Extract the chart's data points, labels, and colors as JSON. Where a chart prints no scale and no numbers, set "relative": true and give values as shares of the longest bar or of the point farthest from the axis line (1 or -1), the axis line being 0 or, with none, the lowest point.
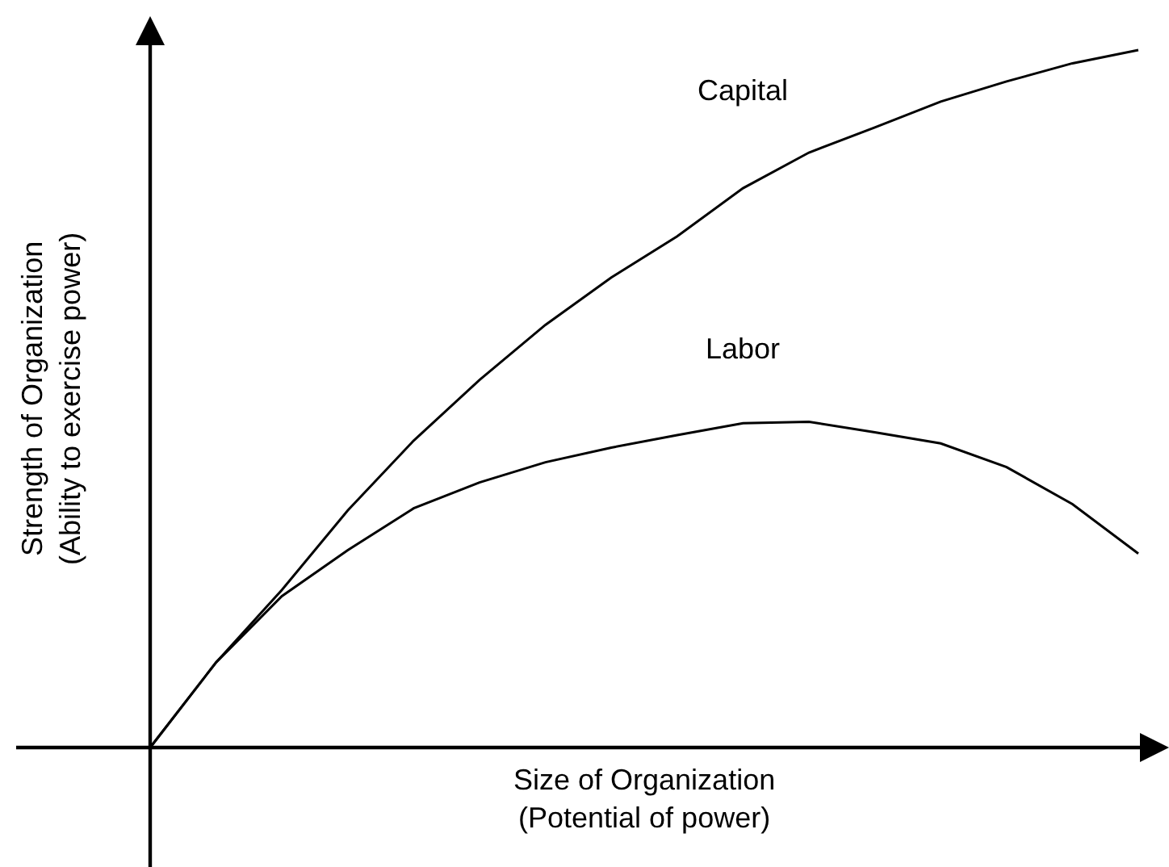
{
  "chart_data": {
    "type": "line",
    "relative": true,
    "xlabel": "Size of Organization\n(Potential of power)",
    "ylabel": "Strength of Organization\n(Ability to exercise power)",
    "categories": [
      null,
      null,
      null,
      null,
      null,
      null,
      null,
      null,
      null,
      null,
      null,
      null,
      null,
      null,
      null,
      null
    ],
    "series": [
      {
        "name": "Capital",
        "color": "#000000",
        "values": [
          0,
          0.122,
          0.226,
          0.34,
          0.44,
          0.527,
          0.606,
          0.674,
          0.733,
          0.802,
          0.853,
          0.889,
          0.926,
          0.955,
          0.981,
          1
        ]
      },
      {
        "name": "Labor",
        "color": "#000000",
        "values": [
          0,
          0.122,
          0.217,
          0.283,
          0.343,
          0.38,
          0.409,
          0.43,
          0.448,
          0.465,
          0.467,
          0.452,
          0.436,
          0.402,
          0.349,
          0.278
        ]
      }
    ],
    "legend": false,
    "marker": "none",
    "line_style": "solid",
    "grid": false
  }
}
